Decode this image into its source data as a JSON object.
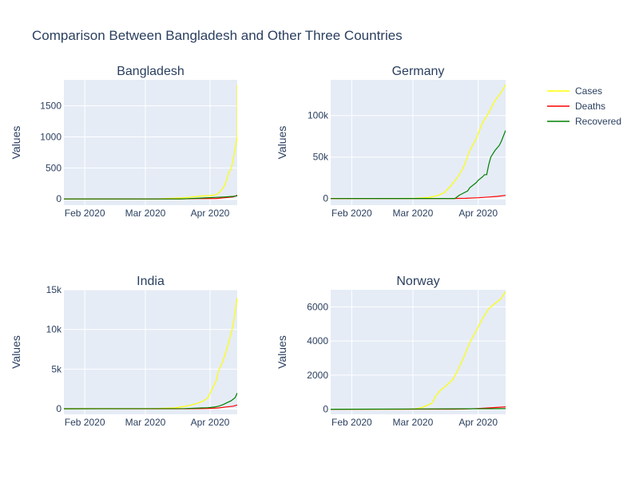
{
  "chart_data": {
    "type": "line",
    "title": "Comparison Between Bangladesh and Other Three Countries",
    "legend": {
      "placement": "top-right",
      "entries": [
        {
          "name": "Cases",
          "color": "#ffff00"
        },
        {
          "name": "Deaths",
          "color": "#ff0000"
        },
        {
          "name": "Recovered",
          "color": "#008000"
        }
      ]
    },
    "grid": true,
    "subplots": [
      {
        "title": "Bangladesh",
        "ylabel": "Values",
        "xlim": [
          "2020-01-22",
          "2020-04-14"
        ],
        "ylim": [
          -100,
          1920
        ],
        "xticks": [
          {
            "value": "2020-02-01",
            "label": "Feb 2020"
          },
          {
            "value": "2020-03-01",
            "label": "Mar 2020"
          },
          {
            "value": "2020-04-01",
            "label": "Apr 2020"
          }
        ],
        "yticks": [
          {
            "value": 0,
            "label": "0"
          },
          {
            "value": 500,
            "label": "500"
          },
          {
            "value": 1000,
            "label": "1000"
          },
          {
            "value": 1500,
            "label": "1500"
          }
        ],
        "series": [
          {
            "name": "Cases",
            "color": "#ffff00",
            "points": [
              [
                "2020-01-22",
                0
              ],
              [
                "2020-03-07",
                0
              ],
              [
                "2020-03-08",
                3
              ],
              [
                "2020-03-20",
                20
              ],
              [
                "2020-03-28",
                48
              ],
              [
                "2020-04-01",
                54
              ],
              [
                "2020-04-04",
                70
              ],
              [
                "2020-04-06",
                123
              ],
              [
                "2020-04-08",
                218
              ],
              [
                "2020-04-10",
                424
              ],
              [
                "2020-04-11",
                482
              ],
              [
                "2020-04-12",
                621
              ],
              [
                "2020-04-13",
                803
              ],
              [
                "2020-04-14",
                1012
              ],
              [
                "2020-04-14",
                1231
              ],
              [
                "2020-04-14",
                1572
              ],
              [
                "2020-04-14",
                1838
              ]
            ]
          },
          {
            "name": "Deaths",
            "color": "#ff0000",
            "points": [
              [
                "2020-01-22",
                0
              ],
              [
                "2020-03-18",
                0
              ],
              [
                "2020-03-26",
                5
              ],
              [
                "2020-04-04",
                8
              ],
              [
                "2020-04-08",
                20
              ],
              [
                "2020-04-12",
                34
              ],
              [
                "2020-04-14",
                60
              ]
            ]
          },
          {
            "name": "Recovered",
            "color": "#008000",
            "points": [
              [
                "2020-01-22",
                0
              ],
              [
                "2020-03-18",
                0
              ],
              [
                "2020-03-28",
                15
              ],
              [
                "2020-04-04",
                26
              ],
              [
                "2020-04-08",
                33
              ],
              [
                "2020-04-12",
                42
              ],
              [
                "2020-04-14",
                50
              ]
            ]
          }
        ]
      },
      {
        "title": "Germany",
        "ylabel": "Values",
        "xlim": [
          "2020-01-22",
          "2020-04-14"
        ],
        "ylim": [
          -8000,
          143000
        ],
        "xticks": [
          {
            "value": "2020-02-01",
            "label": "Feb 2020"
          },
          {
            "value": "2020-03-01",
            "label": "Mar 2020"
          },
          {
            "value": "2020-04-01",
            "label": "Apr 2020"
          }
        ],
        "yticks": [
          {
            "value": 0,
            "label": "0"
          },
          {
            "value": 50000,
            "label": "50k"
          },
          {
            "value": 100000,
            "label": "100k"
          }
        ],
        "series": [
          {
            "name": "Cases",
            "color": "#ffff00",
            "points": [
              [
                "2020-01-22",
                0
              ],
              [
                "2020-03-01",
                130
              ],
              [
                "2020-03-08",
                1040
              ],
              [
                "2020-03-13",
                3700
              ],
              [
                "2020-03-16",
                7300
              ],
              [
                "2020-03-19",
                15300
              ],
              [
                "2020-03-22",
                24900
              ],
              [
                "2020-03-25",
                37300
              ],
              [
                "2020-03-28",
                57700
              ],
              [
                "2020-03-31",
                71800
              ],
              [
                "2020-04-03",
                91200
              ],
              [
                "2020-04-06",
                103400
              ],
              [
                "2020-04-09",
                118200
              ],
              [
                "2020-04-12",
                127900
              ],
              [
                "2020-04-14",
                137000
              ]
            ]
          },
          {
            "name": "Deaths",
            "color": "#ff0000",
            "points": [
              [
                "2020-01-22",
                0
              ],
              [
                "2020-03-20",
                70
              ],
              [
                "2020-03-26",
                270
              ],
              [
                "2020-04-01",
                930
              ],
              [
                "2020-04-06",
                1800
              ],
              [
                "2020-04-10",
                2600
              ],
              [
                "2020-04-14",
                3800
              ]
            ]
          },
          {
            "name": "Recovered",
            "color": "#008000",
            "points": [
              [
                "2020-01-22",
                0
              ],
              [
                "2020-03-21",
                100
              ],
              [
                "2020-03-23",
                4000
              ],
              [
                "2020-03-25",
                6500
              ],
              [
                "2020-03-27",
                9100
              ],
              [
                "2020-03-28",
                13000
              ],
              [
                "2020-03-31",
                19000
              ],
              [
                "2020-04-01",
                22000
              ],
              [
                "2020-04-03",
                26000
              ],
              [
                "2020-04-04",
                28700
              ],
              [
                "2020-04-05",
                28700
              ],
              [
                "2020-04-06",
                41000
              ],
              [
                "2020-04-07",
                50000
              ],
              [
                "2020-04-09",
                58000
              ],
              [
                "2020-04-11",
                64000
              ],
              [
                "2020-04-12",
                69000
              ],
              [
                "2020-04-14",
                82000
              ]
            ]
          }
        ]
      },
      {
        "title": "India",
        "ylabel": "Values",
        "xlim": [
          "2020-01-22",
          "2020-04-14"
        ],
        "ylim": [
          -700,
          15000
        ],
        "xticks": [
          {
            "value": "2020-02-01",
            "label": "Feb 2020"
          },
          {
            "value": "2020-03-01",
            "label": "Mar 2020"
          },
          {
            "value": "2020-04-01",
            "label": "Apr 2020"
          }
        ],
        "yticks": [
          {
            "value": 0,
            "label": "0"
          },
          {
            "value": 5000,
            "label": "5k"
          },
          {
            "value": 10000,
            "label": "10k"
          },
          {
            "value": 15000,
            "label": "15k"
          }
        ],
        "series": [
          {
            "name": "Cases",
            "color": "#ffff00",
            "points": [
              [
                "2020-01-22",
                0
              ],
              [
                "2020-03-05",
                30
              ],
              [
                "2020-03-15",
                110
              ],
              [
                "2020-03-22",
                400
              ],
              [
                "2020-03-26",
                700
              ],
              [
                "2020-03-29",
                1000
              ],
              [
                "2020-03-31",
                1400
              ],
              [
                "2020-04-02",
                2500
              ],
              [
                "2020-04-03",
                3000
              ],
              [
                "2020-04-04",
                3600
              ],
              [
                "2020-04-05",
                4800
              ],
              [
                "2020-04-07",
                5900
              ],
              [
                "2020-04-08",
                6700
              ],
              [
                "2020-04-10",
                8400
              ],
              [
                "2020-04-12",
                10500
              ],
              [
                "2020-04-14",
                14000
              ]
            ]
          },
          {
            "name": "Deaths",
            "color": "#ff0000",
            "points": [
              [
                "2020-01-22",
                0
              ],
              [
                "2020-03-20",
                4
              ],
              [
                "2020-03-31",
                35
              ],
              [
                "2020-04-05",
                110
              ],
              [
                "2020-04-09",
                240
              ],
              [
                "2020-04-12",
                330
              ],
              [
                "2020-04-14",
                480
              ]
            ]
          },
          {
            "name": "Recovered",
            "color": "#008000",
            "points": [
              [
                "2020-01-22",
                0
              ],
              [
                "2020-03-20",
                20
              ],
              [
                "2020-03-31",
                140
              ],
              [
                "2020-04-03",
                220
              ],
              [
                "2020-04-05",
                330
              ],
              [
                "2020-04-07",
                500
              ],
              [
                "2020-04-09",
                750
              ],
              [
                "2020-04-11",
                1000
              ],
              [
                "2020-04-12",
                1200
              ],
              [
                "2020-04-13",
                1400
              ],
              [
                "2020-04-14",
                2000
              ]
            ]
          }
        ]
      },
      {
        "title": "Norway",
        "ylabel": "Values",
        "xlim": [
          "2020-01-22",
          "2020-04-14"
        ],
        "ylim": [
          -300,
          7000
        ],
        "xticks": [
          {
            "value": "2020-02-01",
            "label": "Feb 2020"
          },
          {
            "value": "2020-03-01",
            "label": "Mar 2020"
          },
          {
            "value": "2020-04-01",
            "label": "Apr 2020"
          }
        ],
        "yticks": [
          {
            "value": 0,
            "label": "0"
          },
          {
            "value": 2000,
            "label": "2000"
          },
          {
            "value": 4000,
            "label": "4000"
          },
          {
            "value": 6000,
            "label": "6000"
          }
        ],
        "series": [
          {
            "name": "Cases",
            "color": "#ffff00",
            "points": [
              [
                "2020-01-22",
                0
              ],
              [
                "2020-02-28",
                0
              ],
              [
                "2020-03-03",
                30
              ],
              [
                "2020-03-06",
                130
              ],
              [
                "2020-03-10",
                350
              ],
              [
                "2020-03-12",
                800
              ],
              [
                "2020-03-14",
                1100
              ],
              [
                "2020-03-17",
                1400
              ],
              [
                "2020-03-20",
                1750
              ],
              [
                "2020-03-22",
                2200
              ],
              [
                "2020-03-25",
                3000
              ],
              [
                "2020-03-28",
                3900
              ],
              [
                "2020-03-31",
                4600
              ],
              [
                "2020-04-03",
                5300
              ],
              [
                "2020-04-06",
                5900
              ],
              [
                "2020-04-09",
                6200
              ],
              [
                "2020-04-12",
                6500
              ],
              [
                "2020-04-14",
                6900
              ]
            ]
          },
          {
            "name": "Deaths",
            "color": "#ff0000",
            "points": [
              [
                "2020-01-22",
                0
              ],
              [
                "2020-03-20",
                5
              ],
              [
                "2020-03-26",
                14
              ],
              [
                "2020-04-01",
                40
              ],
              [
                "2020-04-05",
                70
              ],
              [
                "2020-04-09",
                100
              ],
              [
                "2020-04-14",
                140
              ]
            ]
          },
          {
            "name": "Recovered",
            "color": "#008000",
            "points": [
              [
                "2020-01-22",
                0
              ],
              [
                "2020-04-14",
                30
              ]
            ]
          }
        ]
      }
    ]
  }
}
